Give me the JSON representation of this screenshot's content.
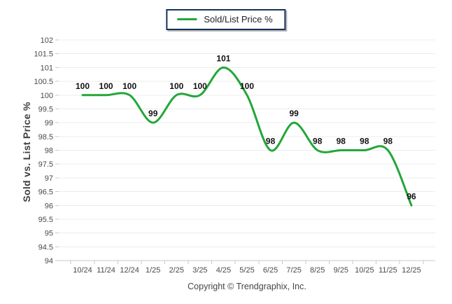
{
  "legend": {
    "label": "Sold/List Price %",
    "line_color": "#22a738",
    "border_color": "#16325c"
  },
  "y_axis_title": "Sold vs. List Price %",
  "footer": {
    "copyright": "Copyright © Trendgraphix, Inc."
  },
  "chart_data": {
    "type": "line",
    "title": "",
    "xlabel": "",
    "ylabel": "Sold vs. List Price %",
    "categories": [
      "10/24",
      "11/24",
      "12/24",
      "1/25",
      "2/25",
      "3/25",
      "4/25",
      "5/25",
      "6/25",
      "7/25",
      "8/25",
      "9/25",
      "10/25",
      "11/25",
      "12/25"
    ],
    "series": [
      {
        "name": "Sold/List Price %",
        "color": "#22a738",
        "values": [
          100,
          100,
          100,
          99,
          100,
          100,
          101,
          100,
          98,
          99,
          98,
          98,
          98,
          98,
          96
        ]
      }
    ],
    "ylim": [
      94,
      102
    ],
    "ytick_step": 0.5,
    "grid": true,
    "smoothed": true,
    "data_labels": true,
    "legend_position": "top-center"
  },
  "palette": {
    "gridline": "#ececec",
    "axis_line": "#c3cbd6",
    "tick_label": "#4a4a4a",
    "data_label": "#111111"
  }
}
